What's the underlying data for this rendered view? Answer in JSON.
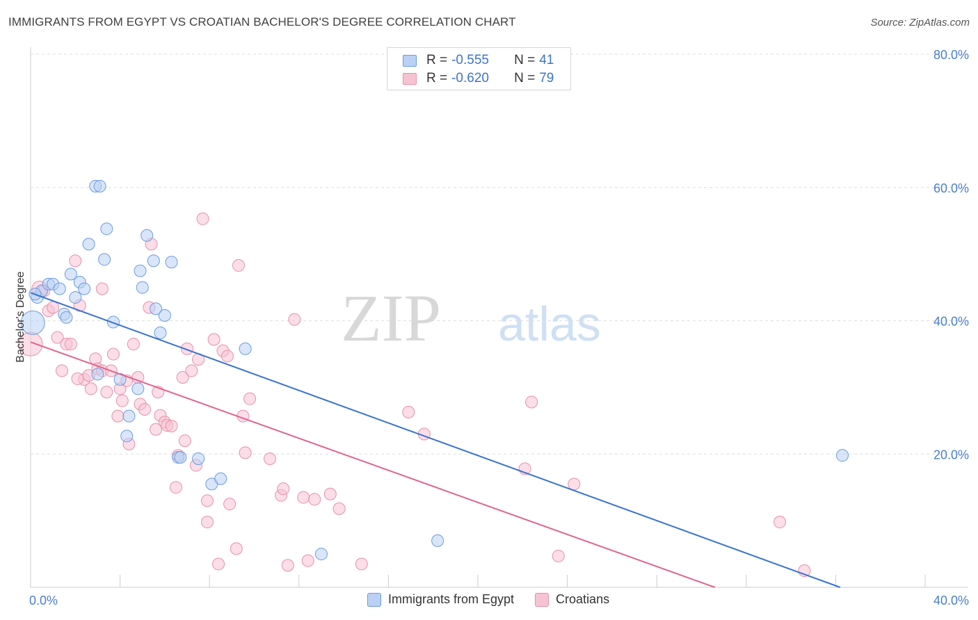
{
  "header": {
    "title": "IMMIGRANTS FROM EGYPT VS CROATIAN BACHELOR'S DEGREE CORRELATION CHART",
    "source": "Source: ZipAtlas.com"
  },
  "watermark": {
    "zip": "ZIP",
    "atlas": "atlas"
  },
  "legend_top": {
    "rows": [
      {
        "r_label": "R = ",
        "r_value": "-0.555",
        "n_label": "N = ",
        "n_value": "41"
      },
      {
        "r_label": "R = ",
        "r_value": "-0.620",
        "n_label": "N = ",
        "n_value": "79"
      }
    ]
  },
  "legend_bottom": {
    "items": [
      {
        "label": "Immigrants from Egypt"
      },
      {
        "label": "Croatians"
      }
    ]
  },
  "colors": {
    "blue_fill": "#b9d1f4",
    "blue_stroke": "#6b9be0",
    "blue_line": "#3672d3",
    "pink_fill": "#f7c3d3",
    "pink_stroke": "#e98faa",
    "pink_line": "#e0648c",
    "grid": "#dddddd",
    "axis": "#cccccc",
    "tick_text": "#4a7ecf"
  },
  "chart_data": {
    "type": "scatter",
    "title": "IMMIGRANTS FROM EGYPT VS CROATIAN BACHELOR'S DEGREE CORRELATION CHART",
    "xlabel": "",
    "ylabel": "Bachelor's Degree",
    "xlim": [
      0,
      40
    ],
    "ylim": [
      0,
      80
    ],
    "x_tick_labels": [
      "0.0%",
      "40.0%"
    ],
    "y_ticks": [
      20,
      40,
      60,
      80
    ],
    "y_tick_labels": [
      "20.0%",
      "40.0%",
      "60.0%",
      "80.0%"
    ],
    "grid": true,
    "series": [
      {
        "name": "Immigrants from Egypt",
        "r": -0.555,
        "n": 41,
        "trend": {
          "x0": 0,
          "y0": 44.2,
          "x1": 36.2,
          "y1": 0
        },
        "points": [
          [
            0.1,
            39.7,
            2.0
          ],
          [
            0.3,
            43.5,
            1
          ],
          [
            0.5,
            44.5,
            1
          ],
          [
            0.8,
            45.5,
            1
          ],
          [
            1.0,
            45.5,
            1
          ],
          [
            1.3,
            44.8,
            1
          ],
          [
            1.5,
            41.0,
            1
          ],
          [
            1.6,
            40.5,
            1
          ],
          [
            1.8,
            47.0,
            1
          ],
          [
            2.0,
            43.5,
            1
          ],
          [
            2.2,
            45.8,
            1
          ],
          [
            2.4,
            44.8,
            1
          ],
          [
            2.6,
            51.5,
            1
          ],
          [
            2.9,
            60.2,
            1
          ],
          [
            3.1,
            60.2,
            1
          ],
          [
            3.3,
            49.2,
            1
          ],
          [
            3.4,
            53.8,
            1
          ],
          [
            3.7,
            39.8,
            1
          ],
          [
            3.0,
            32.0,
            1
          ],
          [
            4.0,
            31.2,
            1
          ],
          [
            4.3,
            22.7,
            1
          ],
          [
            4.4,
            25.7,
            1
          ],
          [
            4.8,
            29.8,
            1
          ],
          [
            4.9,
            47.5,
            1
          ],
          [
            5.0,
            45.0,
            1
          ],
          [
            5.2,
            52.8,
            1
          ],
          [
            5.5,
            49.0,
            1
          ],
          [
            5.6,
            41.8,
            1
          ],
          [
            5.8,
            38.2,
            1
          ],
          [
            6.0,
            40.8,
            1
          ],
          [
            6.3,
            48.8,
            1
          ],
          [
            6.6,
            19.5,
            1
          ],
          [
            6.7,
            19.5,
            1
          ],
          [
            7.5,
            19.3,
            1
          ],
          [
            8.1,
            15.5,
            1
          ],
          [
            8.5,
            16.3,
            1
          ],
          [
            9.6,
            35.8,
            1
          ],
          [
            13.0,
            5.0,
            1
          ],
          [
            18.2,
            7.0,
            1
          ],
          [
            36.3,
            19.8,
            1
          ],
          [
            0.2,
            44.0,
            1
          ]
        ]
      },
      {
        "name": "Croatians",
        "r": -0.62,
        "n": 79,
        "trend": {
          "x0": 0,
          "y0": 36.8,
          "x1": 30.6,
          "y1": 0
        },
        "points": [
          [
            0.0,
            36.5,
            2.0
          ],
          [
            0.4,
            44.8,
            1.3
          ],
          [
            0.6,
            44.5,
            1
          ],
          [
            0.8,
            41.5,
            1
          ],
          [
            1.0,
            42.0,
            1
          ],
          [
            1.2,
            37.5,
            1
          ],
          [
            1.4,
            32.5,
            1
          ],
          [
            1.6,
            36.5,
            1
          ],
          [
            1.8,
            36.5,
            1
          ],
          [
            2.0,
            49.0,
            1
          ],
          [
            2.2,
            42.3,
            1
          ],
          [
            2.4,
            31.2,
            1
          ],
          [
            2.6,
            31.8,
            1
          ],
          [
            2.7,
            29.8,
            1
          ],
          [
            2.9,
            34.3,
            1
          ],
          [
            3.0,
            32.8,
            1
          ],
          [
            3.2,
            32.5,
            1
          ],
          [
            3.2,
            44.8,
            1
          ],
          [
            3.4,
            29.3,
            1
          ],
          [
            3.6,
            32.5,
            1
          ],
          [
            3.7,
            35.0,
            1
          ],
          [
            3.9,
            25.7,
            1
          ],
          [
            4.0,
            29.8,
            1
          ],
          [
            4.1,
            28.0,
            1
          ],
          [
            4.3,
            31.0,
            1
          ],
          [
            4.4,
            21.5,
            1
          ],
          [
            4.6,
            36.5,
            1
          ],
          [
            4.8,
            31.5,
            1
          ],
          [
            4.9,
            27.5,
            1
          ],
          [
            5.1,
            26.7,
            1
          ],
          [
            5.3,
            42.0,
            1
          ],
          [
            5.4,
            51.5,
            1
          ],
          [
            5.6,
            23.7,
            1
          ],
          [
            5.7,
            29.3,
            1
          ],
          [
            5.8,
            25.8,
            1
          ],
          [
            6.0,
            24.8,
            1
          ],
          [
            6.1,
            24.3,
            1
          ],
          [
            6.3,
            24.2,
            1
          ],
          [
            6.5,
            15.0,
            1
          ],
          [
            6.6,
            19.8,
            1
          ],
          [
            6.8,
            31.5,
            1
          ],
          [
            7.0,
            35.8,
            1
          ],
          [
            7.2,
            32.5,
            1
          ],
          [
            7.4,
            18.3,
            1
          ],
          [
            7.5,
            34.2,
            1
          ],
          [
            7.7,
            55.3,
            1
          ],
          [
            7.9,
            13.0,
            1
          ],
          [
            7.9,
            9.8,
            1
          ],
          [
            8.2,
            37.2,
            1
          ],
          [
            8.4,
            3.5,
            1
          ],
          [
            8.6,
            35.5,
            1
          ],
          [
            8.8,
            34.7,
            1
          ],
          [
            8.9,
            12.5,
            1
          ],
          [
            9.2,
            5.8,
            1
          ],
          [
            9.3,
            48.3,
            1
          ],
          [
            9.5,
            25.7,
            1
          ],
          [
            9.6,
            20.2,
            1
          ],
          [
            9.8,
            28.3,
            1
          ],
          [
            10.7,
            19.3,
            1
          ],
          [
            11.2,
            13.8,
            1
          ],
          [
            11.3,
            14.8,
            1
          ],
          [
            11.5,
            3.3,
            1
          ],
          [
            11.8,
            40.2,
            1
          ],
          [
            12.2,
            13.5,
            1
          ],
          [
            12.4,
            4.0,
            1
          ],
          [
            12.7,
            13.2,
            1
          ],
          [
            13.4,
            14.0,
            1
          ],
          [
            13.8,
            11.8,
            1
          ],
          [
            14.8,
            3.5,
            1
          ],
          [
            16.9,
            26.3,
            1
          ],
          [
            17.6,
            23.0,
            1
          ],
          [
            22.1,
            17.8,
            1
          ],
          [
            22.4,
            27.8,
            1
          ],
          [
            23.6,
            4.7,
            1
          ],
          [
            24.3,
            15.5,
            1
          ],
          [
            33.5,
            9.8,
            1
          ],
          [
            34.6,
            2.5,
            1
          ],
          [
            2.1,
            31.3,
            1
          ],
          [
            6.9,
            22.0,
            1
          ]
        ]
      }
    ]
  }
}
